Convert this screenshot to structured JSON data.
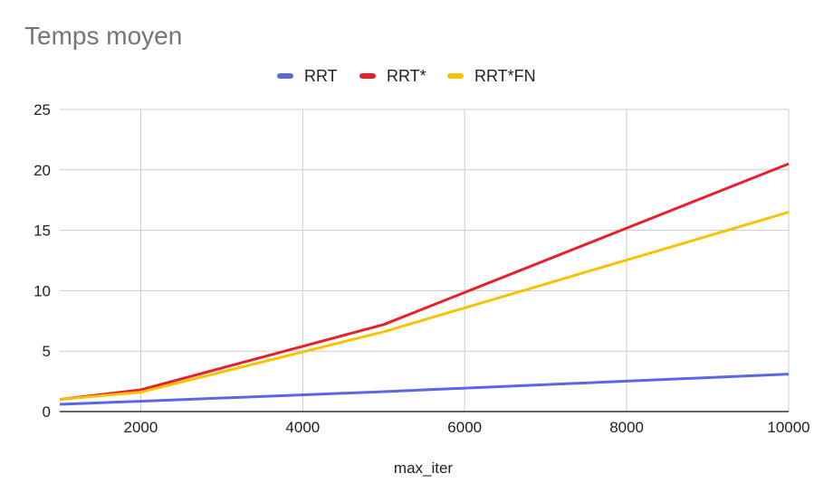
{
  "chart_data": {
    "type": "line",
    "title": "Temps moyen",
    "xlabel": "max_iter",
    "ylabel": "",
    "xlim": [
      1000,
      10000
    ],
    "ylim": [
      0,
      25
    ],
    "x_ticks": [
      2000,
      4000,
      6000,
      8000,
      10000
    ],
    "y_ticks": [
      0,
      5,
      10,
      15,
      20,
      25
    ],
    "x_tick_labels": [
      "2000",
      "4000",
      "6000",
      "8000",
      "10000"
    ],
    "y_tick_labels": [
      "0",
      "5",
      "10",
      "15",
      "20",
      "25"
    ],
    "x": [
      1000,
      2000,
      5000,
      10000
    ],
    "grid": true,
    "legend_position": "top",
    "series": [
      {
        "name": "RRT",
        "color": "#5b67e6",
        "values": [
          0.6,
          0.85,
          1.65,
          3.1
        ]
      },
      {
        "name": "RRT*",
        "color": "#e8202e",
        "values": [
          1.0,
          1.8,
          7.2,
          20.5
        ]
      },
      {
        "name": "RRT*FN",
        "color": "#f7c200",
        "values": [
          1.0,
          1.6,
          6.6,
          16.5
        ]
      }
    ]
  }
}
